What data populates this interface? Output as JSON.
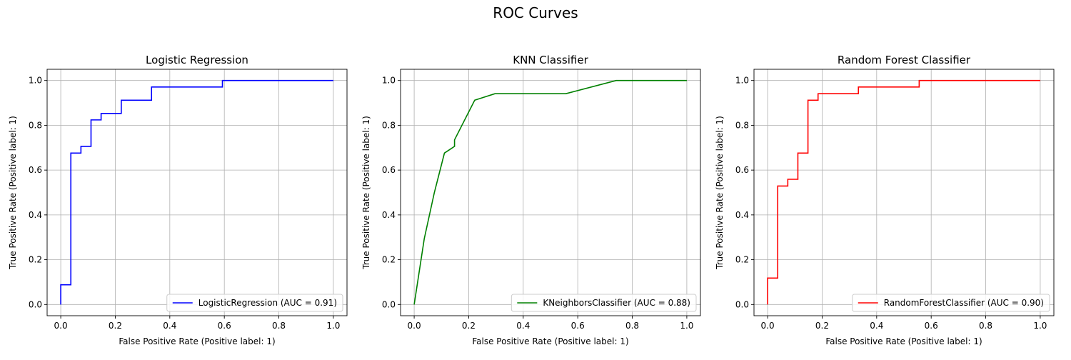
{
  "figure": {
    "title": "ROC Curves"
  },
  "chart_data": [
    {
      "type": "line",
      "title": "Logistic Regression",
      "xlabel": "False Positive Rate (Positive label: 1)",
      "ylabel": "True Positive Rate (Positive label: 1)",
      "xlim": [
        -0.05,
        1.05
      ],
      "ylim": [
        -0.05,
        1.05
      ],
      "xticks": [
        0.0,
        0.2,
        0.4,
        0.6,
        0.8,
        1.0
      ],
      "yticks": [
        0.0,
        0.2,
        0.4,
        0.6,
        0.8,
        1.0
      ],
      "grid": true,
      "legend_position": "lower-right",
      "series": [
        {
          "name": "LogisticRegression (AUC = 0.91)",
          "color": "#0000ff",
          "x": [
            0.0,
            0.0,
            0.037,
            0.037,
            0.074,
            0.074,
            0.111,
            0.111,
            0.148,
            0.148,
            0.222,
            0.222,
            0.333,
            0.333,
            0.593,
            0.593,
            1.0
          ],
          "y": [
            0.0,
            0.088,
            0.088,
            0.676,
            0.676,
            0.706,
            0.706,
            0.824,
            0.824,
            0.853,
            0.853,
            0.912,
            0.912,
            0.971,
            0.971,
            1.0,
            1.0
          ]
        }
      ]
    },
    {
      "type": "line",
      "title": "KNN Classifier",
      "xlabel": "False Positive Rate (Positive label: 1)",
      "ylabel": "True Positive Rate (Positive label: 1)",
      "xlim": [
        -0.05,
        1.05
      ],
      "ylim": [
        -0.05,
        1.05
      ],
      "xticks": [
        0.0,
        0.2,
        0.4,
        0.6,
        0.8,
        1.0
      ],
      "yticks": [
        0.0,
        0.2,
        0.4,
        0.6,
        0.8,
        1.0
      ],
      "grid": true,
      "legend_position": "lower-right",
      "series": [
        {
          "name": "KNeighborsClassifier (AUC = 0.88)",
          "color": "#008000",
          "x": [
            0.0,
            0.037,
            0.074,
            0.111,
            0.148,
            0.148,
            0.222,
            0.296,
            0.556,
            0.741,
            1.0
          ],
          "y": [
            0.0,
            0.294,
            0.5,
            0.676,
            0.706,
            0.735,
            0.912,
            0.941,
            0.941,
            1.0,
            1.0
          ]
        }
      ]
    },
    {
      "type": "line",
      "title": "Random Forest Classifier",
      "xlabel": "False Positive Rate (Positive label: 1)",
      "ylabel": "True Positive Rate (Positive label: 1)",
      "xlim": [
        -0.05,
        1.05
      ],
      "ylim": [
        -0.05,
        1.05
      ],
      "xticks": [
        0.0,
        0.2,
        0.4,
        0.6,
        0.8,
        1.0
      ],
      "yticks": [
        0.0,
        0.2,
        0.4,
        0.6,
        0.8,
        1.0
      ],
      "grid": true,
      "legend_position": "lower-right",
      "series": [
        {
          "name": "RandomForestClassifier (AUC = 0.90)",
          "color": "#ff0000",
          "x": [
            0.0,
            0.0,
            0.037,
            0.037,
            0.074,
            0.074,
            0.111,
            0.111,
            0.148,
            0.148,
            0.185,
            0.185,
            0.333,
            0.333,
            0.556,
            0.556,
            1.0
          ],
          "y": [
            0.0,
            0.118,
            0.118,
            0.529,
            0.529,
            0.559,
            0.559,
            0.676,
            0.676,
            0.912,
            0.912,
            0.941,
            0.941,
            0.971,
            0.971,
            1.0,
            1.0
          ]
        }
      ]
    }
  ]
}
